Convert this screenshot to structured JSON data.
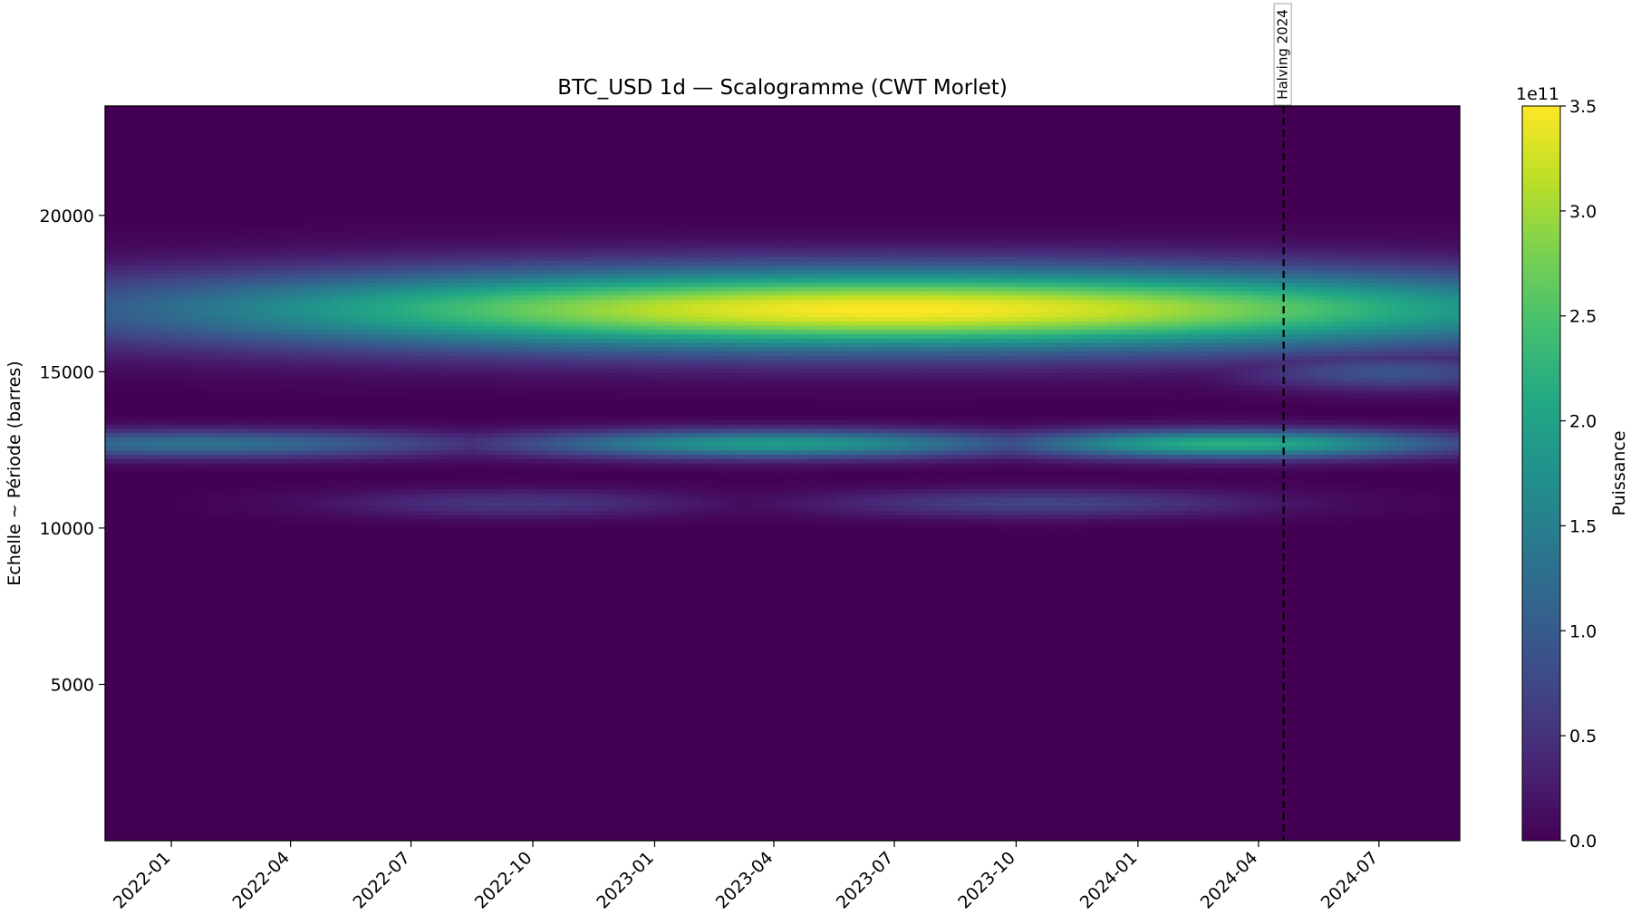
{
  "chart_data": {
    "type": "heatmap",
    "title": "BTC_USD 1d — Scalogramme (CWT Morlet)",
    "xlabel": "",
    "ylabel": "Echelle ~ Période (barres)",
    "x_range": [
      "2021-11-12",
      "2024-08-31"
    ],
    "x_ticks": [
      "2022-01",
      "2022-04",
      "2022-07",
      "2022-10",
      "2023-01",
      "2023-04",
      "2023-07",
      "2023-10",
      "2024-01",
      "2024-04",
      "2024-07"
    ],
    "y_range": [
      1,
      23500
    ],
    "y_ticks": [
      5000,
      10000,
      15000,
      20000
    ],
    "y_tick_labels": [
      "5000",
      "10000",
      "15000",
      "20000"
    ],
    "colormap": "viridis",
    "colorbar": {
      "label": "Puissance",
      "offset_label": "1e11",
      "range": [
        0,
        3.5
      ],
      "ticks": [
        0.0,
        0.5,
        1.0,
        1.5,
        2.0,
        2.5,
        3.0,
        3.5
      ],
      "tick_labels": [
        "0.0",
        "0.5",
        "1.0",
        "1.5",
        "2.0",
        "2.5",
        "3.0",
        "3.5"
      ]
    },
    "bands": [
      {
        "center": 17000,
        "width": 2000,
        "peak_power": 3.5,
        "peak_date": "2023-07-01",
        "spread_days": 380
      },
      {
        "center": 12700,
        "width": 700,
        "peak_power": 2.2,
        "peak_date": "2024-03-10",
        "spread_days": 120
      },
      {
        "center": 12700,
        "width": 700,
        "peak_power": 1.9,
        "peak_date": "2023-04-01",
        "spread_days": 140
      },
      {
        "center": 12700,
        "width": 700,
        "peak_power": 1.3,
        "peak_date": "2022-01-20",
        "spread_days": 150
      },
      {
        "center": 10800,
        "width": 700,
        "peak_power": 0.7,
        "peak_date": "2023-10-20",
        "spread_days": 120
      },
      {
        "center": 10800,
        "width": 700,
        "peak_power": 0.55,
        "peak_date": "2022-09-20",
        "spread_days": 100
      },
      {
        "center": 15000,
        "width": 900,
        "peak_power": 0.9,
        "peak_date": "2024-07-10",
        "spread_days": 80
      }
    ],
    "annotations": [
      {
        "type": "vline",
        "x": "2024-04-20",
        "style": "dashed",
        "color": "#000000",
        "label": "Halving 2024"
      }
    ],
    "grid": false,
    "legend": "none"
  }
}
